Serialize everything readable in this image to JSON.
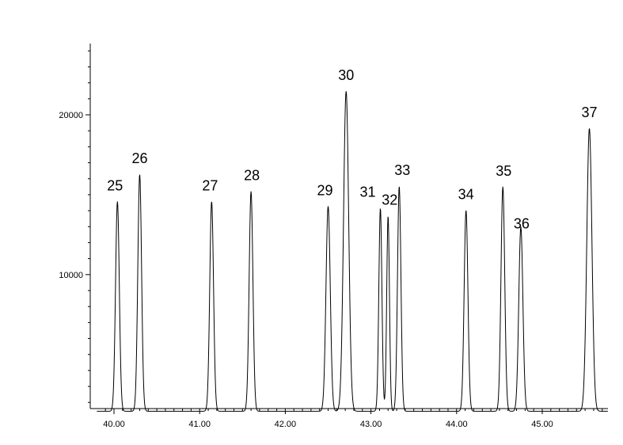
{
  "chart_data": {
    "type": "line",
    "title": "",
    "xlabel": "",
    "ylabel": "",
    "xlim": [
      39.8,
      45.8
    ],
    "ylim": [
      0,
      24300
    ],
    "baseline": 1450,
    "grid": false,
    "x_ticks": [
      40.0,
      41.0,
      42.0,
      43.0,
      44.0,
      45.0
    ],
    "x_tick_labels": [
      "40.00",
      "41.00",
      "42.00",
      "43.00",
      "44.00",
      "45.00"
    ],
    "y_ticks": [
      10000,
      20000
    ],
    "y_tick_labels": [
      "10000",
      "20000"
    ],
    "peaks": [
      {
        "label": "25",
        "rt": 40.04,
        "height": 14580,
        "width": 0.022
      },
      {
        "label": "26",
        "rt": 40.3,
        "height": 16280,
        "width": 0.022
      },
      {
        "label": "27",
        "rt": 41.14,
        "height": 14580,
        "width": 0.022
      },
      {
        "label": "28",
        "rt": 41.6,
        "height": 15210,
        "width": 0.022
      },
      {
        "label": "29",
        "rt": 42.5,
        "height": 14280,
        "width": 0.025
      },
      {
        "label": "30",
        "rt": 42.71,
        "height": 21480,
        "width": 0.03
      },
      {
        "label": "31",
        "rt": 43.11,
        "height": 14170,
        "width": 0.018
      },
      {
        "label": "32",
        "rt": 43.2,
        "height": 13670,
        "width": 0.016
      },
      {
        "label": "33",
        "rt": 43.33,
        "height": 15530,
        "width": 0.02
      },
      {
        "label": "34",
        "rt": 44.11,
        "height": 14030,
        "width": 0.022
      },
      {
        "label": "35",
        "rt": 44.54,
        "height": 15500,
        "width": 0.022
      },
      {
        "label": "36",
        "rt": 44.75,
        "height": 13000,
        "width": 0.024
      },
      {
        "label": "37",
        "rt": 45.55,
        "height": 19160,
        "width": 0.03
      }
    ]
  }
}
